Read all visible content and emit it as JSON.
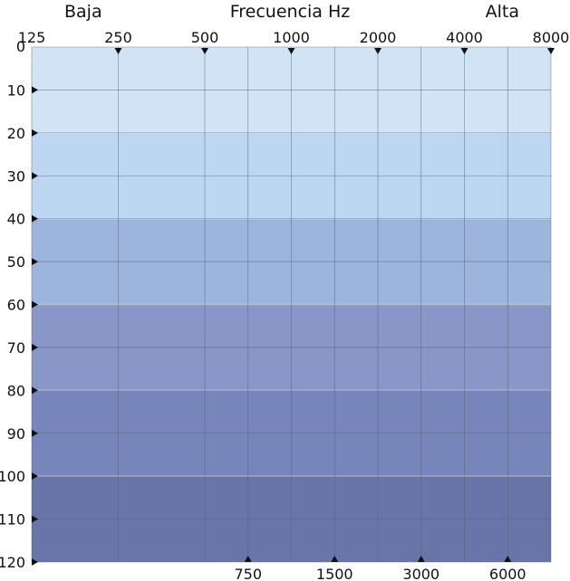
{
  "chart_data": {
    "type": "audiogram",
    "headers": {
      "left": "Baja",
      "center": "Frecuencia Hz",
      "right": "Alta"
    },
    "x_top": [
      "125",
      "250",
      "500",
      "1000",
      "2000",
      "4000",
      "8000"
    ],
    "x_bottom": [
      "750",
      "1500",
      "3000",
      "6000"
    ],
    "y_ticks": [
      0,
      10,
      20,
      30,
      40,
      50,
      60,
      70,
      80,
      90,
      100,
      110,
      120
    ],
    "ylim": [
      0,
      120
    ],
    "y_inverted": true,
    "bands": [
      {
        "from": 0,
        "to": 20,
        "color": "#d0e4f6"
      },
      {
        "from": 20,
        "to": 40,
        "color": "#bdd6f1"
      },
      {
        "from": 40,
        "to": 60,
        "color": "#9db4dd"
      },
      {
        "from": 60,
        "to": 80,
        "color": "#8896c8"
      },
      {
        "from": 80,
        "to": 100,
        "color": "#7686bb"
      },
      {
        "from": 100,
        "to": 120,
        "color": "#6875a9"
      }
    ],
    "grid": true,
    "marker_color": "#111111"
  }
}
